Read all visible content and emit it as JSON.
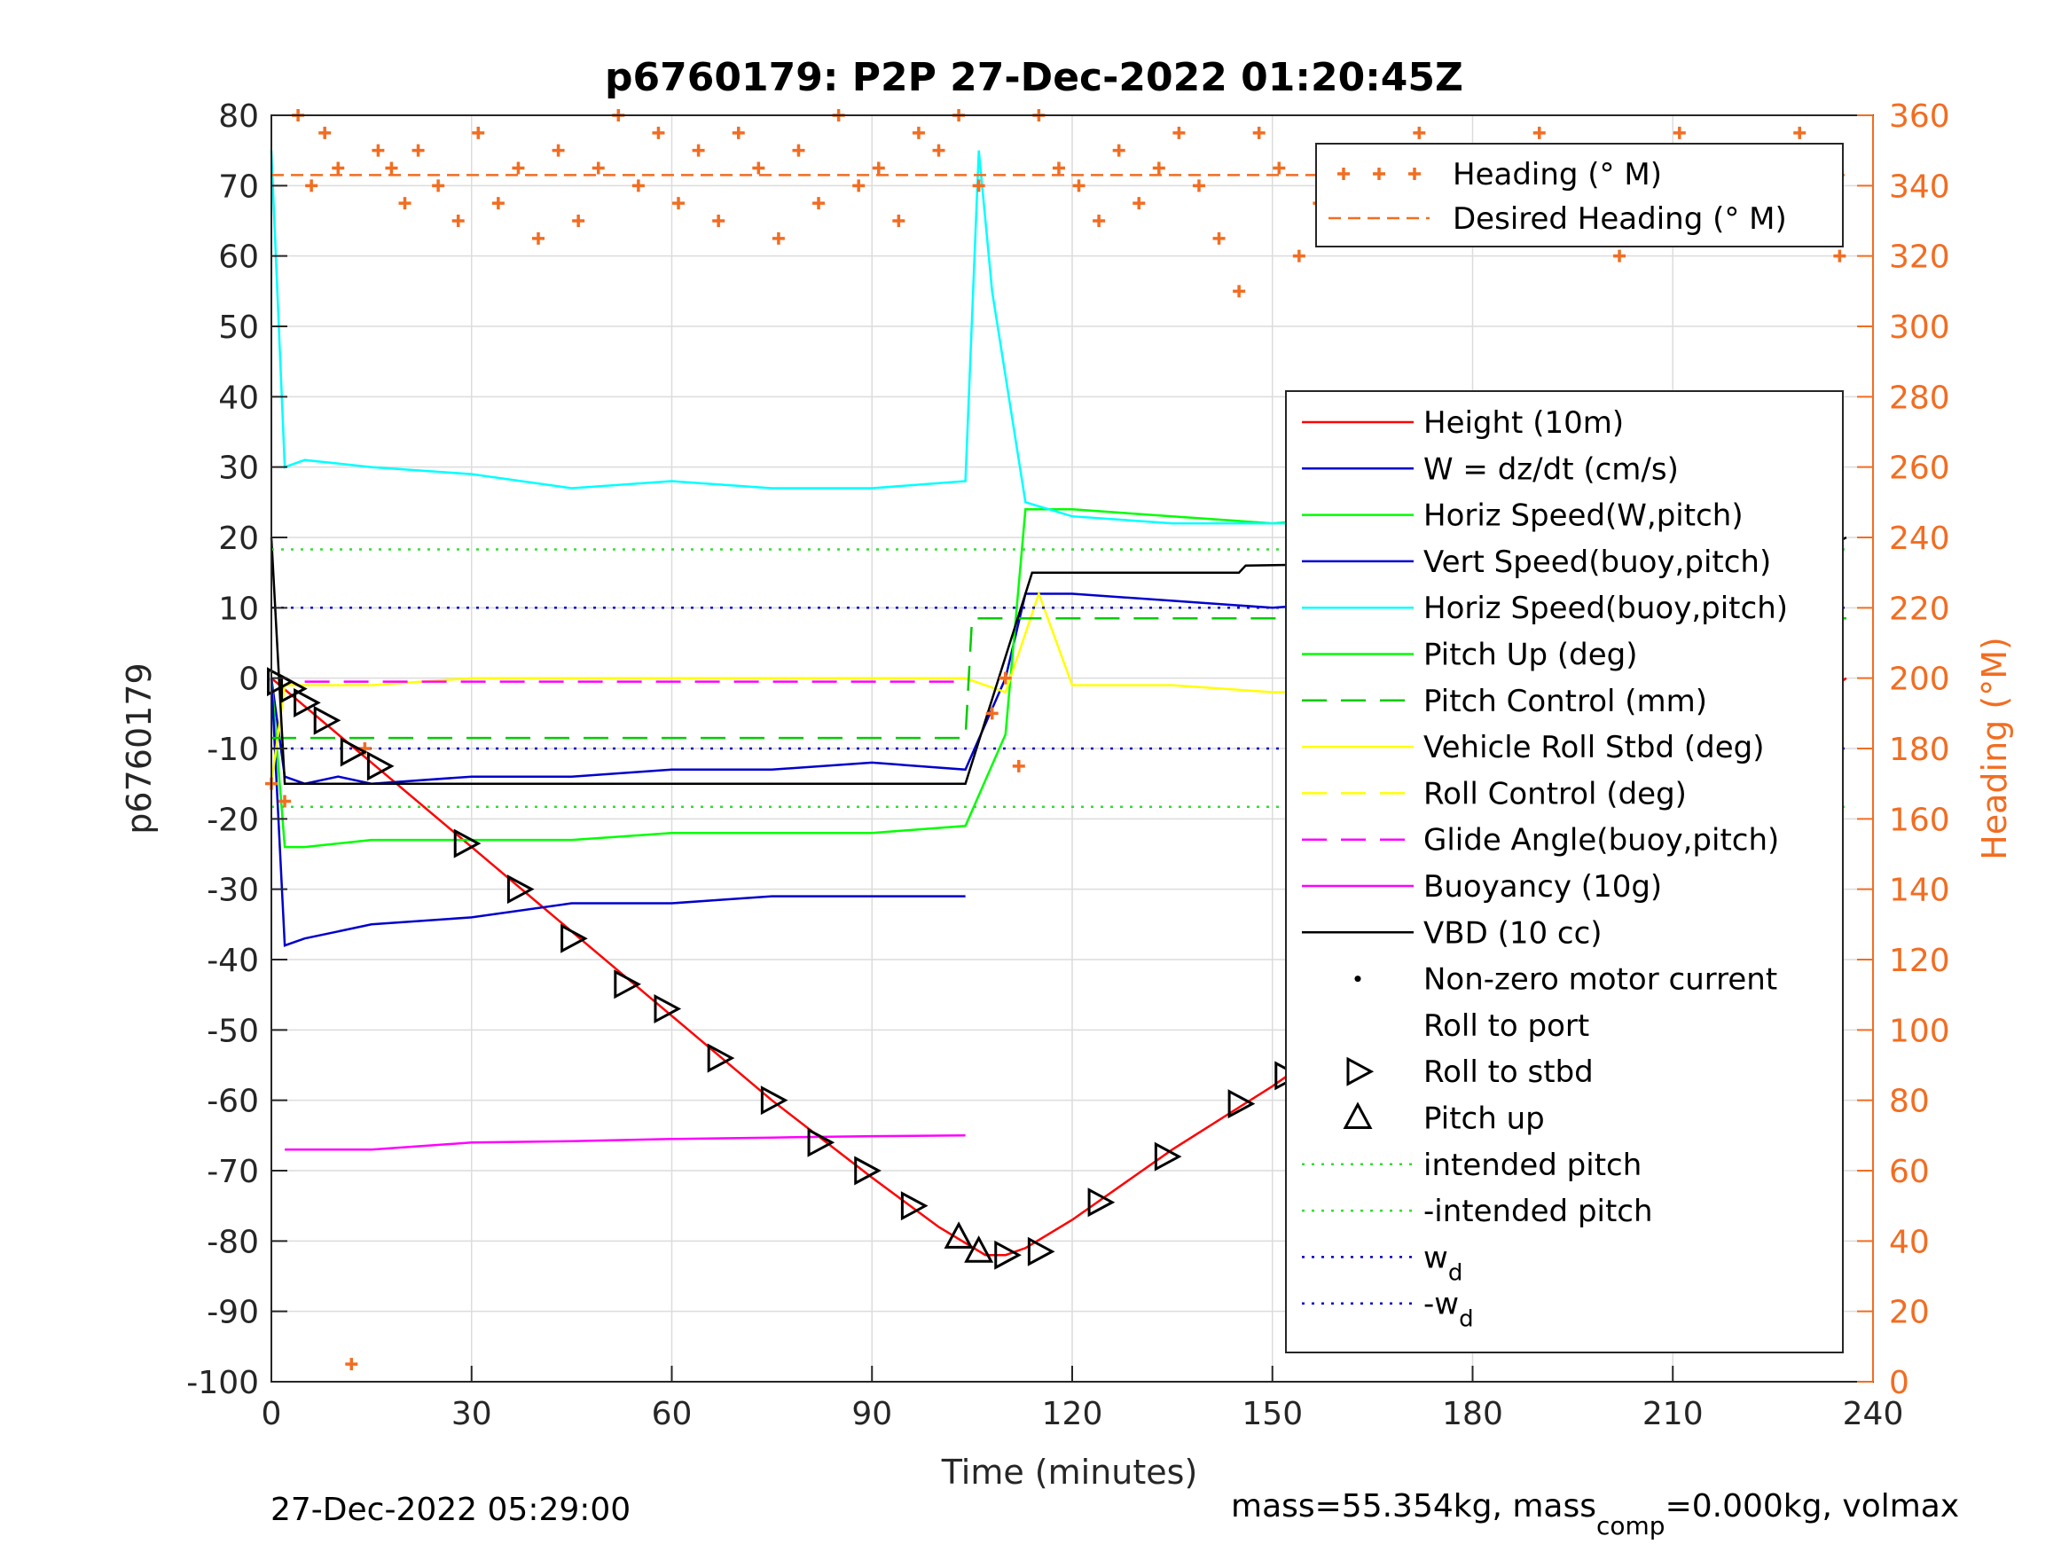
{
  "chart_data": {
    "type": "line",
    "title": "p6760179: P2P 27-Dec-2022 01:20:45Z",
    "xlabel": "Time (minutes)",
    "ylabel": "p6760179",
    "y2label": "Heading (°M)",
    "xlim": [
      0,
      240
    ],
    "ylim": [
      -100,
      80
    ],
    "y2lim": [
      0,
      360
    ],
    "xticks": [
      0,
      30,
      60,
      90,
      120,
      150,
      180,
      210,
      240
    ],
    "yticks": [
      -100,
      -90,
      -80,
      -70,
      -60,
      -50,
      -40,
      -30,
      -20,
      -10,
      0,
      10,
      20,
      30,
      40,
      50,
      60,
      70,
      80
    ],
    "y2ticks": [
      0,
      20,
      40,
      60,
      80,
      100,
      120,
      140,
      160,
      180,
      200,
      220,
      240,
      260,
      280,
      300,
      320,
      340,
      360
    ],
    "grid": true,
    "legend_top": {
      "placement": "top-right",
      "entries": [
        "Heading (° M)",
        "Desired Heading (° M)"
      ]
    },
    "legend_main": {
      "placement": "right",
      "entries": [
        "Height (10m)",
        "W = dz/dt (cm/s)",
        "Horiz Speed(W,pitch)",
        "Vert Speed(buoy,pitch)",
        "Horiz Speed(buoy,pitch)",
        "Pitch Up (deg)",
        "Pitch Control (mm)",
        "Vehicle Roll Stbd (deg)",
        "Roll Control (deg)",
        "Glide Angle(buoy,pitch)",
        "Buoyancy (10g)",
        "VBD (10 cc)",
        "Non-zero motor current",
        "Roll to port",
        "Roll to stbd",
        "Pitch up",
        "intended pitch",
        "-intended pitch",
        "w_d",
        "-w_d"
      ]
    },
    "series": [
      {
        "name": "Height (10m)",
        "color": "#ff0000",
        "x": [
          0,
          15,
          30,
          45,
          60,
          75,
          90,
          100,
          107,
          110,
          113,
          120,
          135,
          150,
          165,
          180,
          195,
          210,
          225,
          236
        ],
        "y": [
          0,
          -12,
          -24,
          -36,
          -48,
          -60,
          -71,
          -78,
          -82,
          -82,
          -81,
          -77,
          -67,
          -58,
          -48,
          -37,
          -27,
          -17,
          -7,
          0
        ]
      },
      {
        "name": "W = dz/dt (cm/s)",
        "color": "#0000cc",
        "x": [
          0,
          2,
          5,
          10,
          15,
          30,
          45,
          60,
          75,
          90,
          104,
          110,
          113,
          120,
          135,
          150,
          165,
          180,
          195,
          210,
          225,
          235
        ],
        "y": [
          0,
          -14,
          -15,
          -14,
          -15,
          -14,
          -14,
          -13,
          -13,
          -12,
          -13,
          0,
          12,
          12,
          11,
          10,
          11,
          11,
          11,
          10,
          11,
          12
        ]
      },
      {
        "name": "Horiz Speed(W,pitch)",
        "color": "#00ff00",
        "x": [
          0,
          2,
          5,
          15,
          30,
          45,
          60,
          75,
          90,
          104,
          110,
          113,
          120,
          135,
          150,
          165,
          180,
          195,
          210,
          225,
          235
        ],
        "y": [
          0,
          -24,
          -24,
          -23,
          -23,
          -23,
          -22,
          -22,
          -22,
          -21,
          -8,
          24,
          24,
          23,
          22,
          23,
          23,
          23,
          22,
          23,
          24
        ]
      },
      {
        "name": "Vert Speed(buoy,pitch)",
        "color": "#00ffff",
        "x": [
          0,
          2,
          5,
          15,
          30,
          45,
          60,
          75,
          90,
          104,
          106,
          108,
          113,
          120,
          135,
          150,
          165,
          180,
          195,
          210,
          225,
          235
        ],
        "y": [
          75,
          30,
          31,
          30,
          29,
          27,
          28,
          27,
          27,
          28,
          75,
          55,
          25,
          23,
          22,
          22,
          22,
          22,
          22,
          22,
          21,
          22
        ]
      },
      {
        "name": "Horiz Speed(buoy,pitch)",
        "color": "#0000cc",
        "x": [
          0,
          2,
          5,
          15,
          30,
          45,
          60,
          75,
          90,
          104
        ],
        "y": [
          0,
          -38,
          -37,
          -35,
          -34,
          -32,
          -32,
          -31,
          -31,
          -31
        ]
      },
      {
        "name": "Roll Control (deg)",
        "color": "#ffff00",
        "x": [
          0,
          2,
          5,
          15,
          30,
          45,
          60,
          75,
          90,
          104,
          110,
          115,
          120,
          135,
          150,
          165,
          180,
          195,
          210,
          225,
          235
        ],
        "y": [
          -15,
          -1,
          -1,
          -1,
          0,
          0,
          0,
          0,
          0,
          0,
          -2,
          12,
          -1,
          -1,
          -2,
          -2,
          -1,
          -2,
          -2,
          -2,
          -2
        ]
      },
      {
        "name": "Buoyancy (10g)",
        "color": "#ff00ff",
        "x": [
          2,
          15,
          30,
          45,
          60,
          75,
          90,
          104
        ],
        "y": [
          -67,
          -67,
          -66,
          -65.8,
          -65.5,
          -65.3,
          -65.1,
          -65
        ]
      },
      {
        "name": "Glide Angle(buoy,pitch)",
        "color": "#ff00ff",
        "x": [
          5,
          104
        ],
        "y": [
          -0.5,
          -0.5
        ]
      },
      {
        "name": "Pitch Control (mm)",
        "color": "#00cc00",
        "x": [
          0,
          104,
          105,
          236
        ],
        "y": [
          -8.5,
          -8.5,
          8.5,
          8.5
        ]
      },
      {
        "name": "VBD (10 cc)",
        "color": "#000000",
        "x": [
          0,
          2,
          104,
          114,
          145,
          146,
          180,
          230,
          236
        ],
        "y": [
          20,
          -15,
          -15,
          15,
          15,
          16,
          16.5,
          17,
          20
        ]
      },
      {
        "name": "intended pitch",
        "color": "#33dd33",
        "x": [
          0,
          236
        ],
        "y": [
          18.3,
          18.3
        ]
      },
      {
        "name": "-intended pitch",
        "color": "#33dd33",
        "x": [
          0,
          236
        ],
        "y": [
          -18.3,
          -18.3
        ]
      },
      {
        "name": "w_d",
        "color": "#0000cc",
        "x": [
          0,
          236
        ],
        "y": [
          10,
          10
        ]
      },
      {
        "name": "-w_d",
        "color": "#0000cc",
        "x": [
          0,
          236
        ],
        "y": [
          -10,
          -10
        ]
      },
      {
        "name": "Desired Heading (° M)",
        "color": "#f26d21",
        "axis": "right",
        "x": [
          0,
          236
        ],
        "y": [
          343,
          343
        ]
      },
      {
        "name": "Heading (° M)",
        "color": "#f26d21",
        "axis": "right",
        "marker": "+",
        "x": [
          0,
          2,
          4,
          6,
          8,
          10,
          12,
          14,
          16,
          18,
          20,
          22,
          25,
          28,
          31,
          34,
          37,
          40,
          43,
          46,
          49,
          52,
          55,
          58,
          61,
          64,
          67,
          70,
          73,
          76,
          79,
          82,
          85,
          88,
          91,
          94,
          97,
          100,
          103,
          106,
          108,
          110,
          112,
          115,
          118,
          121,
          124,
          127,
          130,
          133,
          136,
          139,
          142,
          145,
          148,
          151,
          154,
          157,
          160,
          163,
          166,
          169,
          172,
          175,
          178,
          181,
          184,
          187,
          190,
          193,
          196,
          199,
          202,
          205,
          208,
          211,
          214,
          217,
          220,
          223,
          226,
          229,
          232,
          235
        ],
        "y": [
          170,
          165,
          360,
          340,
          355,
          345,
          5,
          180,
          350,
          345,
          335,
          350,
          340,
          330,
          355,
          335,
          345,
          325,
          350,
          330,
          345,
          360,
          340,
          355,
          335,
          350,
          330,
          355,
          345,
          325,
          350,
          335,
          360,
          340,
          345,
          330,
          355,
          350,
          360,
          340,
          190,
          200,
          175,
          360,
          345,
          340,
          330,
          350,
          335,
          345,
          355,
          340,
          325,
          310,
          355,
          345,
          320,
          335,
          350,
          340,
          330,
          345,
          355,
          340,
          335,
          350,
          330,
          345,
          355,
          340,
          330,
          345,
          320,
          350,
          340,
          355,
          345,
          330,
          350,
          340,
          325,
          355,
          345,
          320
        ]
      }
    ],
    "markers": [
      {
        "name": "Roll to stbd",
        "x": [
          1,
          3,
          5,
          8,
          12,
          16,
          29,
          37,
          45,
          53,
          59,
          67,
          75,
          82,
          89,
          96,
          110,
          115,
          124,
          134,
          145,
          152,
          158,
          164,
          173,
          181,
          187,
          196,
          204,
          211,
          216,
          223,
          229,
          232
        ],
        "y": [
          -0.5,
          -1.5,
          -3.5,
          -6,
          -10.5,
          -12.5,
          -23.5,
          -30,
          -37,
          -43.5,
          -47,
          -54,
          -60,
          -66,
          -70,
          -75,
          -82,
          -81.5,
          -74.5,
          -68,
          -60.5,
          -56.5,
          -52,
          -48.5,
          -42,
          -35,
          -32,
          -26,
          -20.5,
          -16,
          -13,
          -8,
          -5.5,
          -4
        ]
      },
      {
        "name": "Pitch up",
        "x": [
          103,
          106
        ],
        "y": [
          -79.5,
          -81.5
        ]
      }
    ]
  },
  "footer": {
    "date": "27-Dec-2022 05:29:00",
    "mass_prefix": "mass=55.354kg, mass",
    "mass_sub": "comp",
    "mass_suffix": "=0.000kg, volmax"
  }
}
